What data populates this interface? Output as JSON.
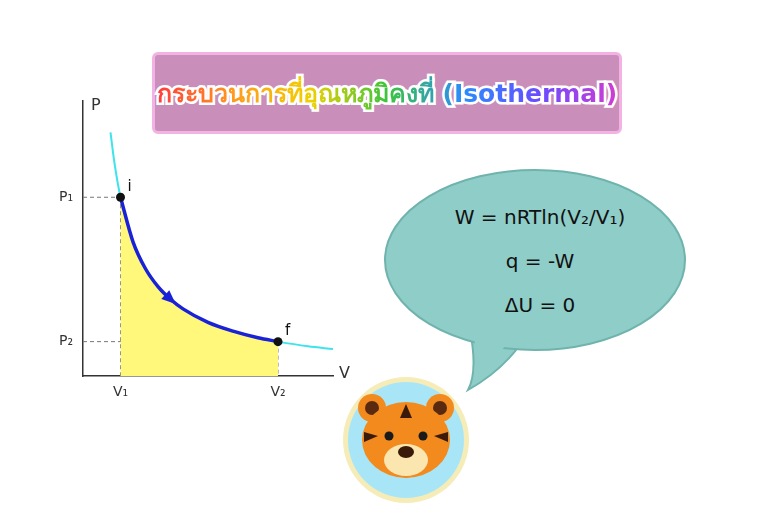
{
  "chart_data": {
    "type": "line",
    "title": "กระบวนการที่อุณหภูมิคงที่ (Isothermal)",
    "x_label": "V",
    "y_label": "P",
    "xlim": [
      0,
      10
    ],
    "ylim": [
      0,
      10
    ],
    "xticks": [
      {
        "value": 1.5,
        "label": "V₁"
      },
      {
        "value": 7.8,
        "label": "V₂"
      }
    ],
    "yticks": [
      {
        "value": 1.25,
        "label": "P₂"
      },
      {
        "value": 6.5,
        "label": "P₁"
      }
    ],
    "grid": false,
    "series": [
      {
        "type": "area",
        "color": "#fff87a",
        "x": [
          1.5,
          2,
          2.5,
          3,
          3.5,
          4,
          5,
          6,
          7,
          7.8
        ],
        "values": [
          6.5,
          4.88,
          3.9,
          3.25,
          2.79,
          2.44,
          1.95,
          1.63,
          1.39,
          1.25
        ]
      },
      {
        "type": "line",
        "color": "#3fe3ea",
        "line_style": "solid",
        "marker": "none",
        "x": [
          1.1,
          1.25,
          1.5,
          2,
          2.5,
          3,
          3.5,
          4,
          5,
          6,
          7,
          7.8,
          9,
          10
        ],
        "values": [
          8.86,
          7.8,
          6.5,
          4.88,
          3.9,
          3.25,
          2.79,
          2.44,
          1.95,
          1.63,
          1.39,
          1.25,
          1.08,
          0.98
        ]
      },
      {
        "type": "line",
        "color": "#1a22d8",
        "line_style": "solid",
        "marker": "arrow",
        "x": [
          1.5,
          2,
          2.5,
          3,
          3.5,
          4,
          5,
          6,
          7,
          7.8
        ],
        "values": [
          6.5,
          4.88,
          3.9,
          3.25,
          2.79,
          2.44,
          1.95,
          1.63,
          1.39,
          1.25
        ]
      }
    ],
    "annotations": [
      {
        "text": "i",
        "x": 1.5,
        "y": 6.5
      },
      {
        "text": "f",
        "x": 7.8,
        "y": 1.25
      }
    ],
    "callout": [
      "W = nRTln(V₂/V₁)",
      "q = -W",
      "ΔU = 0"
    ]
  }
}
